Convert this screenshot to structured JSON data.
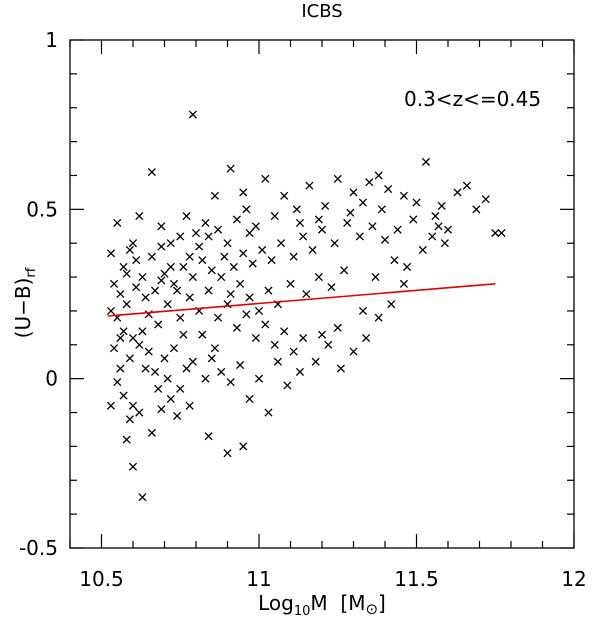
{
  "chart_data": {
    "type": "scatter",
    "title": "ICBS",
    "xlabel": {
      "pre": "Log",
      "sub": "10",
      "post": "M  [M",
      "sym": "⊙",
      "close": "]"
    },
    "ylabel": {
      "main": "(U−B)",
      "sub": "rf"
    },
    "annotation": "0.3<z<=0.45",
    "xlim": [
      10.4,
      12.0
    ],
    "ylim": [
      -0.5,
      1.0
    ],
    "xticks": [
      10.5,
      11.0,
      11.5,
      12.0
    ],
    "xtick_labels": [
      "10.5",
      "11",
      "11.5",
      "12"
    ],
    "yticks": [
      -0.5,
      0.0,
      0.5,
      1.0
    ],
    "ytick_labels": [
      "-0.5",
      "0",
      "0.5",
      "1"
    ],
    "grid": false,
    "marker": "x",
    "fit_line": {
      "color": "#e00000",
      "x": [
        10.52,
        11.75
      ],
      "y": [
        0.185,
        0.28
      ]
    },
    "points": [
      [
        10.79,
        0.78
      ],
      [
        10.55,
        0.46
      ],
      [
        10.66,
        0.61
      ],
      [
        10.62,
        0.48
      ],
      [
        10.6,
        0.4
      ],
      [
        10.53,
        0.37
      ],
      [
        10.57,
        0.33
      ],
      [
        10.59,
        0.38
      ],
      [
        10.61,
        0.35
      ],
      [
        10.58,
        0.31
      ],
      [
        10.54,
        0.28
      ],
      [
        10.56,
        0.25
      ],
      [
        10.58,
        0.22
      ],
      [
        10.55,
        0.18
      ],
      [
        10.57,
        0.14
      ],
      [
        10.6,
        0.12
      ],
      [
        10.62,
        0.1
      ],
      [
        10.59,
        0.06
      ],
      [
        10.56,
        0.03
      ],
      [
        10.55,
        -0.01
      ],
      [
        10.57,
        -0.05
      ],
      [
        10.6,
        -0.08
      ],
      [
        10.62,
        -0.1
      ],
      [
        10.58,
        -0.18
      ],
      [
        10.6,
        -0.26
      ],
      [
        10.63,
        -0.35
      ],
      [
        10.66,
        -0.16
      ],
      [
        10.69,
        -0.09
      ],
      [
        10.72,
        -0.06
      ],
      [
        10.75,
        -0.03
      ],
      [
        10.67,
        0.02
      ],
      [
        10.7,
        0.06
      ],
      [
        10.73,
        0.09
      ],
      [
        10.76,
        0.13
      ],
      [
        10.68,
        0.16
      ],
      [
        10.65,
        0.19
      ],
      [
        10.71,
        0.22
      ],
      [
        10.74,
        0.26
      ],
      [
        10.69,
        0.29
      ],
      [
        10.72,
        0.33
      ],
      [
        10.66,
        0.36
      ],
      [
        10.69,
        0.39
      ],
      [
        10.75,
        0.42
      ],
      [
        10.78,
        0.36
      ],
      [
        10.81,
        0.39
      ],
      [
        10.84,
        0.42
      ],
      [
        10.87,
        0.44
      ],
      [
        10.9,
        0.4
      ],
      [
        10.93,
        0.47
      ],
      [
        10.96,
        0.5
      ],
      [
        10.99,
        0.45
      ],
      [
        10.86,
        0.54
      ],
      [
        10.91,
        0.62
      ],
      [
        10.95,
        0.55
      ],
      [
        11.02,
        0.59
      ],
      [
        11.08,
        0.54
      ],
      [
        11.12,
        0.5
      ],
      [
        11.16,
        0.57
      ],
      [
        11.21,
        0.51
      ],
      [
        11.25,
        0.59
      ],
      [
        11.3,
        0.55
      ],
      [
        11.35,
        0.58
      ],
      [
        11.38,
        0.6
      ],
      [
        11.41,
        0.56
      ],
      [
        11.46,
        0.54
      ],
      [
        11.5,
        0.52
      ],
      [
        11.53,
        0.64
      ],
      [
        11.58,
        0.51
      ],
      [
        11.63,
        0.55
      ],
      [
        11.66,
        0.57
      ],
      [
        11.69,
        0.5
      ],
      [
        11.72,
        0.53
      ],
      [
        11.75,
        0.43
      ],
      [
        11.77,
        0.43
      ],
      [
        11.57,
        0.45
      ],
      [
        11.59,
        0.4
      ],
      [
        11.52,
        0.38
      ],
      [
        11.49,
        0.47
      ],
      [
        11.44,
        0.44
      ],
      [
        11.4,
        0.41
      ],
      [
        11.36,
        0.45
      ],
      [
        11.32,
        0.42
      ],
      [
        11.28,
        0.46
      ],
      [
        11.24,
        0.4
      ],
      [
        11.2,
        0.44
      ],
      [
        11.17,
        0.38
      ],
      [
        11.14,
        0.42
      ],
      [
        11.11,
        0.36
      ],
      [
        11.07,
        0.4
      ],
      [
        11.04,
        0.35
      ],
      [
        11.01,
        0.38
      ],
      [
        10.98,
        0.34
      ],
      [
        10.95,
        0.37
      ],
      [
        10.92,
        0.33
      ],
      [
        10.89,
        0.36
      ],
      [
        10.85,
        0.32
      ],
      [
        10.82,
        0.35
      ],
      [
        10.79,
        0.3
      ],
      [
        10.76,
        0.33
      ],
      [
        10.73,
        0.28
      ],
      [
        10.7,
        0.31
      ],
      [
        10.78,
        0.24
      ],
      [
        10.81,
        0.2
      ],
      [
        10.84,
        0.26
      ],
      [
        10.87,
        0.18
      ],
      [
        10.9,
        0.22
      ],
      [
        10.93,
        0.15
      ],
      [
        10.96,
        0.19
      ],
      [
        10.99,
        0.12
      ],
      [
        11.02,
        0.16
      ],
      [
        11.05,
        0.1
      ],
      [
        11.08,
        0.14
      ],
      [
        11.11,
        0.08
      ],
      [
        11.14,
        0.12
      ],
      [
        11.18,
        0.05
      ],
      [
        11.22,
        0.1
      ],
      [
        11.26,
        0.03
      ],
      [
        11.3,
        0.08
      ],
      [
        11.34,
        0.12
      ],
      [
        11.38,
        0.18
      ],
      [
        11.42,
        0.22
      ],
      [
        11.46,
        0.28
      ],
      [
        11.56,
        0.48
      ],
      [
        11.27,
        0.32
      ],
      [
        11.23,
        0.27
      ],
      [
        11.19,
        0.3
      ],
      [
        11.15,
        0.25
      ],
      [
        11.1,
        0.28
      ],
      [
        11.06,
        0.22
      ],
      [
        11.03,
        0.26
      ],
      [
        11.0,
        0.2
      ],
      [
        10.97,
        0.24
      ],
      [
        10.94,
        0.28
      ],
      [
        10.91,
        0.25
      ],
      [
        10.88,
        0.3
      ],
      [
        10.85,
        0.06
      ],
      [
        10.88,
        0.02
      ],
      [
        10.91,
        -0.01
      ],
      [
        10.94,
        0.04
      ],
      [
        10.97,
        -0.06
      ],
      [
        11.0,
        0.0
      ],
      [
        11.03,
        -0.1
      ],
      [
        11.06,
        0.05
      ],
      [
        10.9,
        -0.22
      ],
      [
        10.95,
        -0.2
      ],
      [
        10.84,
        -0.17
      ],
      [
        10.78,
        -0.08
      ],
      [
        10.74,
        -0.11
      ],
      [
        10.71,
        0.0
      ],
      [
        10.68,
        -0.03
      ],
      [
        10.64,
        0.03
      ],
      [
        10.63,
        0.14
      ],
      [
        10.65,
        0.08
      ],
      [
        10.64,
        0.24
      ],
      [
        10.61,
        0.27
      ],
      [
        10.56,
        0.12
      ],
      [
        10.53,
        0.2
      ],
      [
        10.54,
        0.09
      ],
      [
        10.53,
        -0.08
      ],
      [
        10.59,
        -0.12
      ],
      [
        11.09,
        -0.02
      ],
      [
        11.13,
        0.02
      ],
      [
        11.2,
        0.13
      ],
      [
        11.25,
        0.15
      ],
      [
        11.33,
        0.2
      ],
      [
        11.37,
        0.3
      ],
      [
        11.43,
        0.35
      ],
      [
        11.47,
        0.33
      ],
      [
        11.55,
        0.42
      ],
      [
        11.6,
        0.44
      ],
      [
        11.39,
        0.5
      ],
      [
        11.33,
        0.52
      ],
      [
        11.29,
        0.49
      ],
      [
        11.19,
        0.47
      ],
      [
        11.13,
        0.46
      ],
      [
        11.05,
        0.48
      ],
      [
        10.97,
        0.43
      ],
      [
        10.83,
        0.46
      ],
      [
        10.77,
        0.48
      ],
      [
        10.69,
        0.45
      ],
      [
        10.72,
        0.4
      ],
      [
        10.8,
        0.43
      ],
      [
        10.63,
        0.3
      ],
      [
        10.67,
        0.26
      ],
      [
        10.75,
        0.18
      ],
      [
        10.82,
        0.13
      ],
      [
        10.86,
        0.09
      ],
      [
        10.79,
        0.05
      ],
      [
        10.83,
        0.0
      ],
      [
        10.77,
        0.03
      ]
    ]
  }
}
